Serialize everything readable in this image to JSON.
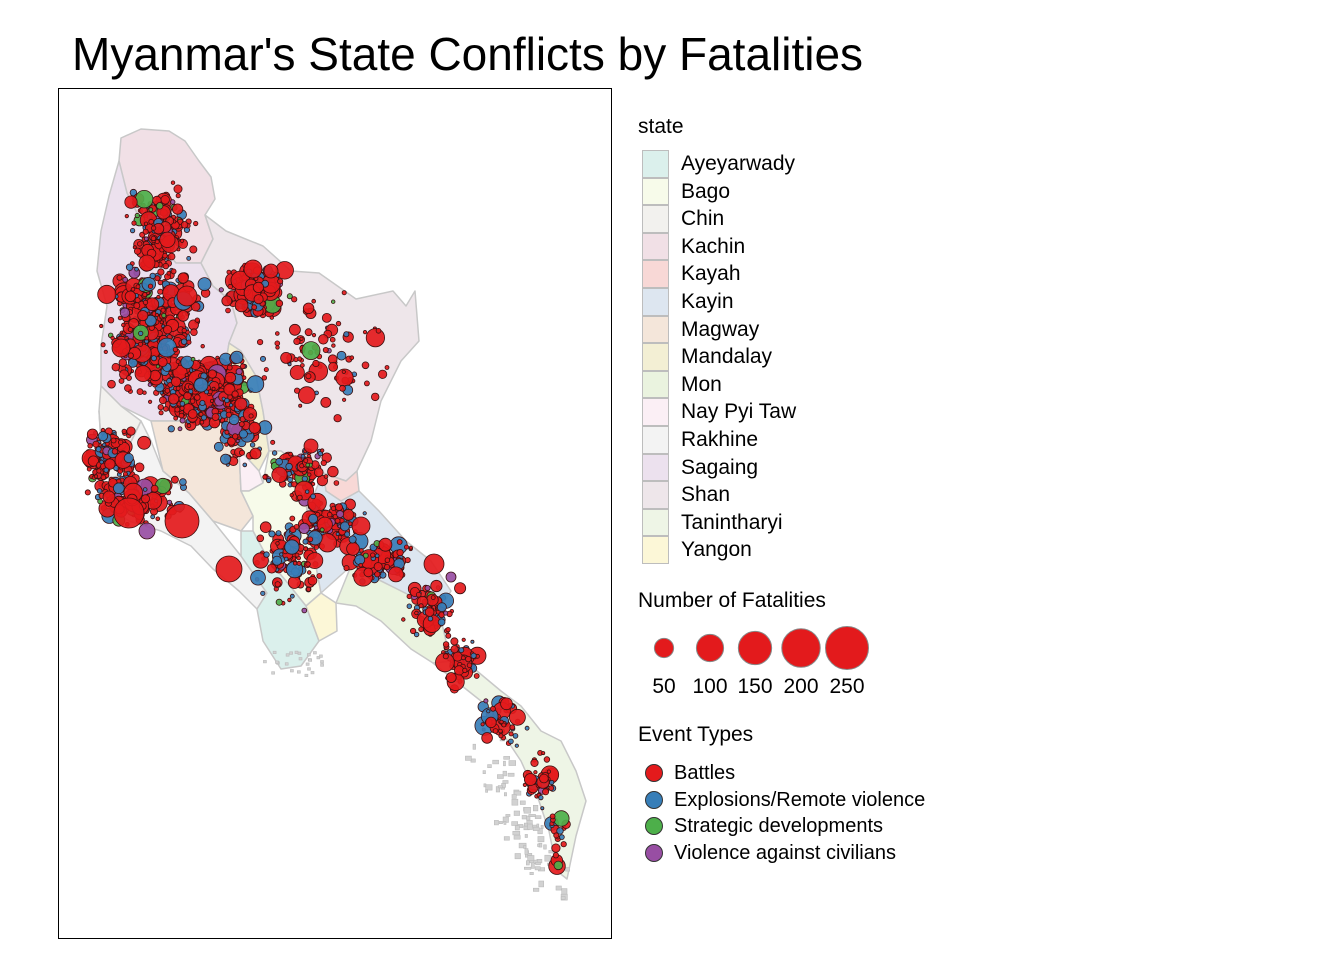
{
  "title": "Myanmar's State Conflicts by Fatalities",
  "legend_state": {
    "title": "state",
    "items": [
      {
        "label": "Ayeyarwady",
        "color": "#dbf0ec"
      },
      {
        "label": "Bago",
        "color": "#f7fbea"
      },
      {
        "label": "Chin",
        "color": "#f2f1ee"
      },
      {
        "label": "Kachin",
        "color": "#f1e0e6"
      },
      {
        "label": "Kayah",
        "color": "#f8d8d6"
      },
      {
        "label": "Kayin",
        "color": "#dde6f0"
      },
      {
        "label": "Magway",
        "color": "#f4e6da"
      },
      {
        "label": "Mandalay",
        "color": "#f3efd4"
      },
      {
        "label": "Mon",
        "color": "#eaf3df"
      },
      {
        "label": "Nay Pyi Taw",
        "color": "#fbeff5"
      },
      {
        "label": "Rakhine",
        "color": "#f3f3f3"
      },
      {
        "label": "Sagaing",
        "color": "#ece1ee"
      },
      {
        "label": "Shan",
        "color": "#eee6ea"
      },
      {
        "label": "Tanintharyi",
        "color": "#eef5e6"
      },
      {
        "label": "Yangon",
        "color": "#fcf7d7"
      }
    ]
  },
  "legend_size": {
    "title": "Number of Fatalities",
    "fill_color": "#e31a1c",
    "values": [
      50,
      100,
      150,
      200,
      250
    ],
    "labels": [
      "50",
      "100",
      "150",
      "200",
      "250"
    ]
  },
  "legend_event": {
    "title": "Event Types",
    "items": [
      {
        "label": "Battles",
        "color": "#e41a1c"
      },
      {
        "label": "Explosions/Remote violence",
        "color": "#377eb8"
      },
      {
        "label": "Strategic developments",
        "color": "#4daf4a"
      },
      {
        "label": "Violence against civilians",
        "color": "#984ea3"
      }
    ]
  },
  "map": {
    "border_color": "#c8c8c8",
    "point_outline_color": "#3a1010",
    "region_colors": {
      "kachin": "#f1e0e6",
      "sagaing": "#ece1ee",
      "chin": "#f2f1ee",
      "shan": "#eee6ea",
      "magway": "#f4e6da",
      "mandalay": "#f3efd4",
      "naypyitaw": "#fbeff5",
      "kayah": "#f8d8d6",
      "rakhine": "#f3f3f3",
      "bago": "#f7fbea",
      "ayeyarwady": "#dbf0ec",
      "yangon": "#fcf7d7",
      "kayin": "#dde6f0",
      "mon": "#eaf3df",
      "tanintharyi": "#eef5e6"
    }
  }
}
